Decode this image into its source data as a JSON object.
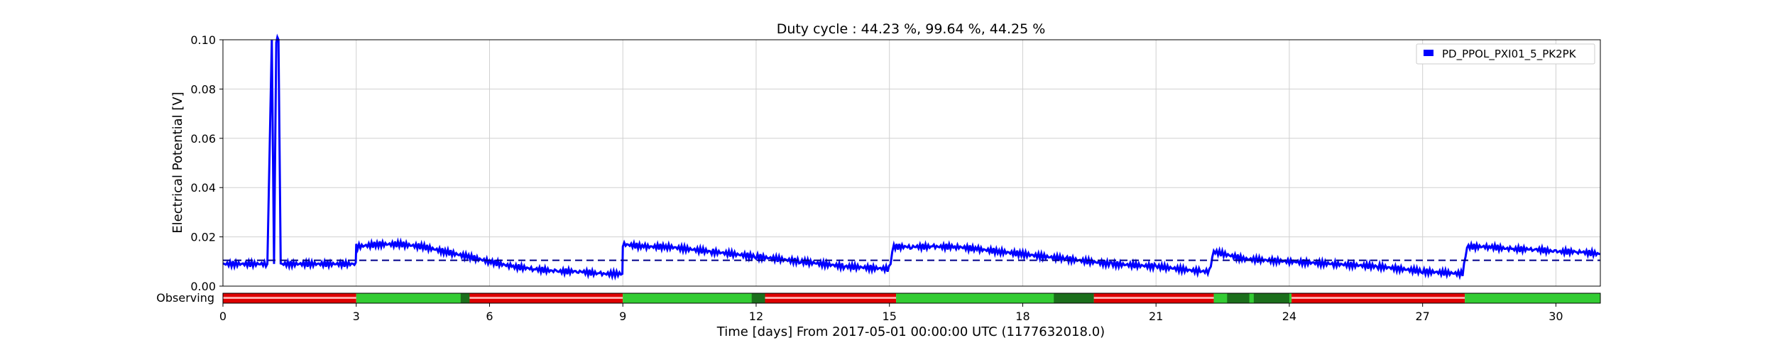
{
  "chart_data": {
    "type": "line",
    "title": "Duty cycle : 44.23 %, 99.64 %, 44.25 %",
    "xlabel": "Time [days] From 2017-05-01 00:00:00 UTC (1177632018.0)",
    "ylabel": "Electrical Potential [V]",
    "xlim": [
      0,
      31
    ],
    "ylim": [
      0,
      0.1
    ],
    "x_ticks": [
      0,
      3,
      6,
      9,
      12,
      15,
      18,
      21,
      24,
      27,
      30
    ],
    "y_ticks": [
      "0.00",
      "0.02",
      "0.04",
      "0.06",
      "0.08",
      "0.10"
    ],
    "grid": true,
    "legend_position": "top-right",
    "series": [
      {
        "name": "PD_PPOL_PXI01_5_PK2PK",
        "color": "#0000ff",
        "x": [
          0,
          1.0,
          1.1,
          1.15,
          1.2,
          1.25,
          1.3,
          2.0,
          2.99,
          3.0,
          3.5,
          4.0,
          4.5,
          5.0,
          5.5,
          6.0,
          6.5,
          7.0,
          7.5,
          8.0,
          8.5,
          8.99,
          9.0,
          9.5,
          10.0,
          11.0,
          12.0,
          13.0,
          14.0,
          14.99,
          15.1,
          15.5,
          16.0,
          16.5,
          17.0,
          17.5,
          18.0,
          19.0,
          20.0,
          21.0,
          22.0,
          22.2,
          22.3,
          23.0,
          24.0,
          25.0,
          26.0,
          27.0,
          27.9,
          28.0,
          28.5,
          29.0,
          29.5,
          30.0,
          30.5,
          31.0
        ],
        "y": [
          0.009,
          0.009,
          0.1,
          0.009,
          0.1,
          0.1,
          0.009,
          0.009,
          0.009,
          0.016,
          0.017,
          0.017,
          0.016,
          0.014,
          0.012,
          0.01,
          0.008,
          0.007,
          0.006,
          0.006,
          0.005,
          0.005,
          0.017,
          0.016,
          0.016,
          0.014,
          0.012,
          0.01,
          0.008,
          0.007,
          0.016,
          0.016,
          0.016,
          0.016,
          0.015,
          0.014,
          0.013,
          0.011,
          0.009,
          0.008,
          0.006,
          0.006,
          0.014,
          0.011,
          0.01,
          0.009,
          0.008,
          0.006,
          0.005,
          0.016,
          0.016,
          0.015,
          0.015,
          0.014,
          0.014,
          0.013
        ]
      },
      {
        "name": "",
        "style": "dashed",
        "color": "#00008b",
        "x": [
          0,
          31
        ],
        "y": [
          0.0105,
          0.0105
        ]
      }
    ],
    "segments": {
      "label": "Observing",
      "legend_entries": [],
      "bars": [
        {
          "start": 0,
          "end": 3.0,
          "state": "off",
          "color": "#dd0000"
        },
        {
          "start": 3.0,
          "end": 5.5,
          "state": "on",
          "color": "#33cc33"
        },
        {
          "start": 5.5,
          "end": 9.0,
          "state": "off",
          "color": "#dd0000"
        },
        {
          "start": 9.0,
          "end": 12.2,
          "state": "on",
          "color": "#33cc33"
        },
        {
          "start": 12.2,
          "end": 15.15,
          "state": "off",
          "color": "#dd0000"
        },
        {
          "start": 15.15,
          "end": 19.6,
          "state": "on",
          "color": "#33cc33"
        },
        {
          "start": 19.6,
          "end": 22.3,
          "state": "off",
          "color": "#dd0000"
        },
        {
          "start": 22.3,
          "end": 24.05,
          "state": "on",
          "color": "#33cc33"
        },
        {
          "start": 24.05,
          "end": 27.95,
          "state": "off",
          "color": "#dd0000"
        },
        {
          "start": 27.95,
          "end": 31.0,
          "state": "on",
          "color": "#33cc33"
        }
      ],
      "dark_bands": [
        {
          "start": 5.35,
          "end": 5.55
        },
        {
          "start": 11.9,
          "end": 12.2
        },
        {
          "start": 18.7,
          "end": 19.6
        },
        {
          "start": 22.6,
          "end": 23.1
        },
        {
          "start": 23.2,
          "end": 24.0
        }
      ]
    }
  }
}
